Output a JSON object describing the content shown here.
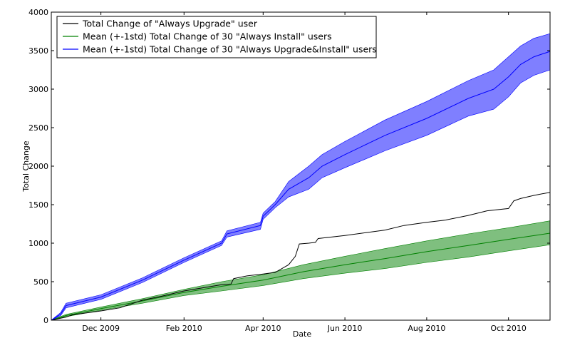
{
  "chart_data": {
    "type": "line",
    "xlabel": "Date",
    "ylabel": "Total Change",
    "x_range": [
      "2009-10-25",
      "2010-11-01"
    ],
    "ylim": [
      0,
      4000
    ],
    "grid": false,
    "legend_position": "top-left",
    "x_ticks": [
      {
        "date": "2009-12-01",
        "label": "Dec 2009"
      },
      {
        "date": "2010-02-01",
        "label": "Feb 2010"
      },
      {
        "date": "2010-04-01",
        "label": "Apr 2010"
      },
      {
        "date": "2010-06-01",
        "label": "Jun 2010"
      },
      {
        "date": "2010-08-01",
        "label": "Aug 2010"
      },
      {
        "date": "2010-10-01",
        "label": "Oct 2010"
      }
    ],
    "y_ticks": [
      0,
      500,
      1000,
      1500,
      2000,
      2500,
      3000,
      3500,
      4000
    ],
    "series": [
      {
        "name": "Total Change of \"Always Upgrade\" user",
        "color": "#000000",
        "style": "line",
        "points": [
          [
            "2009-10-25",
            0
          ],
          [
            "2009-11-05",
            40
          ],
          [
            "2009-11-10",
            70
          ],
          [
            "2009-12-01",
            120
          ],
          [
            "2009-12-15",
            160
          ],
          [
            "2010-01-01",
            260
          ],
          [
            "2010-01-15",
            310
          ],
          [
            "2010-02-01",
            380
          ],
          [
            "2010-02-15",
            420
          ],
          [
            "2010-03-01",
            460
          ],
          [
            "2010-03-08",
            470
          ],
          [
            "2010-03-10",
            540
          ],
          [
            "2010-03-20",
            575
          ],
          [
            "2010-04-01",
            600
          ],
          [
            "2010-04-10",
            620
          ],
          [
            "2010-04-20",
            720
          ],
          [
            "2010-04-25",
            830
          ],
          [
            "2010-04-28",
            990
          ],
          [
            "2010-05-05",
            1000
          ],
          [
            "2010-05-10",
            1010
          ],
          [
            "2010-05-12",
            1060
          ],
          [
            "2010-06-01",
            1100
          ],
          [
            "2010-07-01",
            1170
          ],
          [
            "2010-07-15",
            1230
          ],
          [
            "2010-08-01",
            1270
          ],
          [
            "2010-08-15",
            1300
          ],
          [
            "2010-09-01",
            1360
          ],
          [
            "2010-09-15",
            1420
          ],
          [
            "2010-10-01",
            1450
          ],
          [
            "2010-10-05",
            1550
          ],
          [
            "2010-10-10",
            1580
          ],
          [
            "2010-10-20",
            1620
          ],
          [
            "2010-11-01",
            1660
          ]
        ]
      },
      {
        "name": "Mean (+-1std) Total Change of 30 \"Always Install\" users",
        "color": "#008000",
        "band_color": "#7fbf7f",
        "style": "band",
        "points": [
          [
            "2009-10-25",
            0,
            0,
            0
          ],
          [
            "2009-11-05",
            60,
            45,
            75
          ],
          [
            "2009-12-01",
            150,
            130,
            170
          ],
          [
            "2010-01-01",
            250,
            220,
            280
          ],
          [
            "2010-02-01",
            360,
            320,
            400
          ],
          [
            "2010-03-01",
            440,
            380,
            500
          ],
          [
            "2010-04-01",
            520,
            450,
            590
          ],
          [
            "2010-05-01",
            630,
            540,
            720
          ],
          [
            "2010-06-01",
            720,
            610,
            830
          ],
          [
            "2010-07-01",
            800,
            670,
            930
          ],
          [
            "2010-08-01",
            890,
            750,
            1030
          ],
          [
            "2010-09-01",
            970,
            820,
            1120
          ],
          [
            "2010-10-01",
            1050,
            900,
            1200
          ],
          [
            "2010-11-01",
            1130,
            980,
            1290
          ]
        ]
      },
      {
        "name": "Mean (+-1std) Total Change of 30 \"Always Upgrade&Install\" users",
        "color": "#0000ff",
        "band_color": "#7f7fff",
        "style": "band",
        "points": [
          [
            "2009-10-25",
            0,
            0,
            0
          ],
          [
            "2009-11-01",
            80,
            60,
            100
          ],
          [
            "2009-11-05",
            190,
            160,
            220
          ],
          [
            "2009-12-01",
            300,
            270,
            330
          ],
          [
            "2010-01-01",
            520,
            490,
            550
          ],
          [
            "2010-02-01",
            780,
            750,
            810
          ],
          [
            "2010-03-01",
            1000,
            970,
            1030
          ],
          [
            "2010-03-05",
            1120,
            1080,
            1160
          ],
          [
            "2010-03-30",
            1230,
            1180,
            1270
          ],
          [
            "2010-04-01",
            1350,
            1310,
            1390
          ],
          [
            "2010-04-10",
            1500,
            1460,
            1540
          ],
          [
            "2010-04-20",
            1700,
            1600,
            1800
          ],
          [
            "2010-05-05",
            1850,
            1700,
            2000
          ],
          [
            "2010-05-15",
            2000,
            1850,
            2150
          ],
          [
            "2010-06-01",
            2150,
            1980,
            2320
          ],
          [
            "2010-07-01",
            2400,
            2200,
            2600
          ],
          [
            "2010-08-01",
            2620,
            2400,
            2840
          ],
          [
            "2010-09-01",
            2880,
            2650,
            3110
          ],
          [
            "2010-09-20",
            3000,
            2740,
            3250
          ],
          [
            "2010-10-01",
            3160,
            2900,
            3420
          ],
          [
            "2010-10-10",
            3320,
            3080,
            3560
          ],
          [
            "2010-10-20",
            3420,
            3180,
            3660
          ],
          [
            "2010-11-01",
            3490,
            3250,
            3720
          ]
        ]
      }
    ]
  }
}
